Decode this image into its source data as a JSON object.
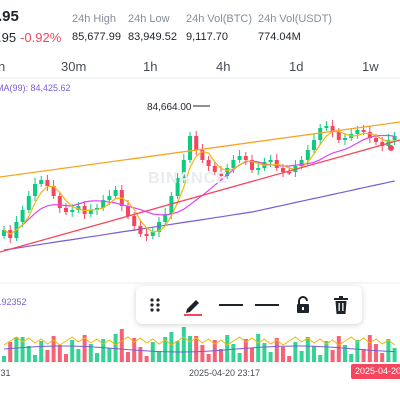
{
  "ticker": {
    "price": ".95",
    "change_value": ".95",
    "change_pct": "-0.92%",
    "stats": [
      {
        "label": "24h High",
        "value": "85,677.99"
      },
      {
        "label": "24h Low",
        "value": "83,949.52"
      },
      {
        "label": "24h Vol(BTC)",
        "value": "9,117.70"
      },
      {
        "label": "24h Vol(USDT)",
        "value": "774.04M"
      }
    ]
  },
  "timeframes": [
    "n",
    "30m",
    "1h",
    "4h",
    "1d",
    "1w"
  ],
  "chart": {
    "ma_legend": "MA(99): 84,425.62",
    "high_marker": "84,664.00",
    "volume_value": "2.92352",
    "time_labels": [
      ":31",
      "2025-04-20 23:17"
    ],
    "time_badge": "2025-04-20",
    "watermark": "BINANCE"
  },
  "colors": {
    "up": "#0ecb81",
    "down": "#f6465d",
    "ma7": "#f0b90b",
    "ma25": "#e040fb",
    "ma99": "#7b5bd6"
  },
  "toolbar": {
    "icons": [
      "drag-handle-icon",
      "pencil-icon",
      "line-style-icon",
      "line-weight-icon",
      "unlock-icon",
      "trash-icon"
    ]
  }
}
